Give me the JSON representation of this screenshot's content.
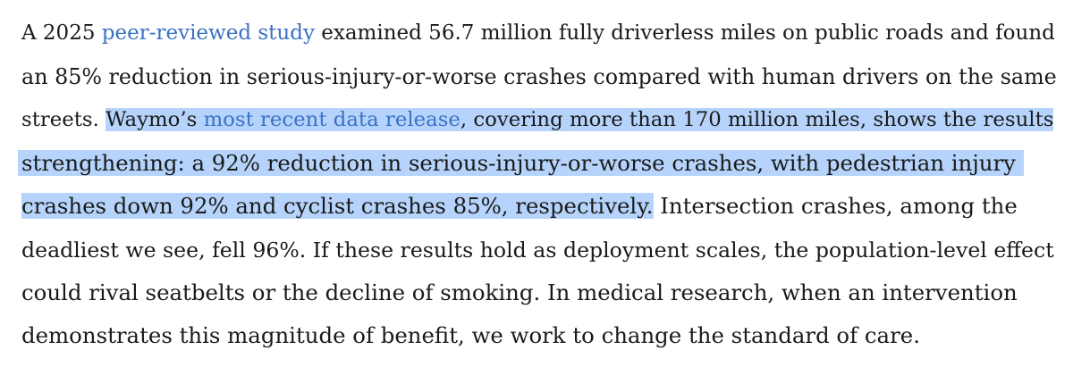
{
  "lines": {
    "l1_pre": "A 2025 ",
    "l1_link": "peer-reviewed study",
    "l1_post": " examined 56.7 million fully driverless miles on public roads and found",
    "l2": "an 85% reduction in serious-injury-or-worse crashes compared with human drivers on the same",
    "l3_pre": "streets. ",
    "l3_hl_pre": "Waymo’s ",
    "l3_link": "most recent data release",
    "l3_hl_post": ", covering more than 170 million miles, shows the results",
    "l4": "strengthening: a 92% reduction in serious-injury-or-worse crashes, with pedestrian injury",
    "l5_hl": "crashes down 92% and cyclist crashes 85%, respectively.",
    "l5_post": " Intersection crashes, among the",
    "l6": "deadliest we see, fell 96%. If these results hold as deployment scales, the population-level effect",
    "l7": "could rival seatbelts or the decline of smoking. In medical research, when an intervention",
    "l8": "demonstrates this magnitude of benefit, we work to change the standard of care."
  },
  "colors": {
    "text": "#1a1a1a",
    "link": "#3a72c4",
    "selection": "#b6d4fb",
    "background": "#ffffff"
  }
}
